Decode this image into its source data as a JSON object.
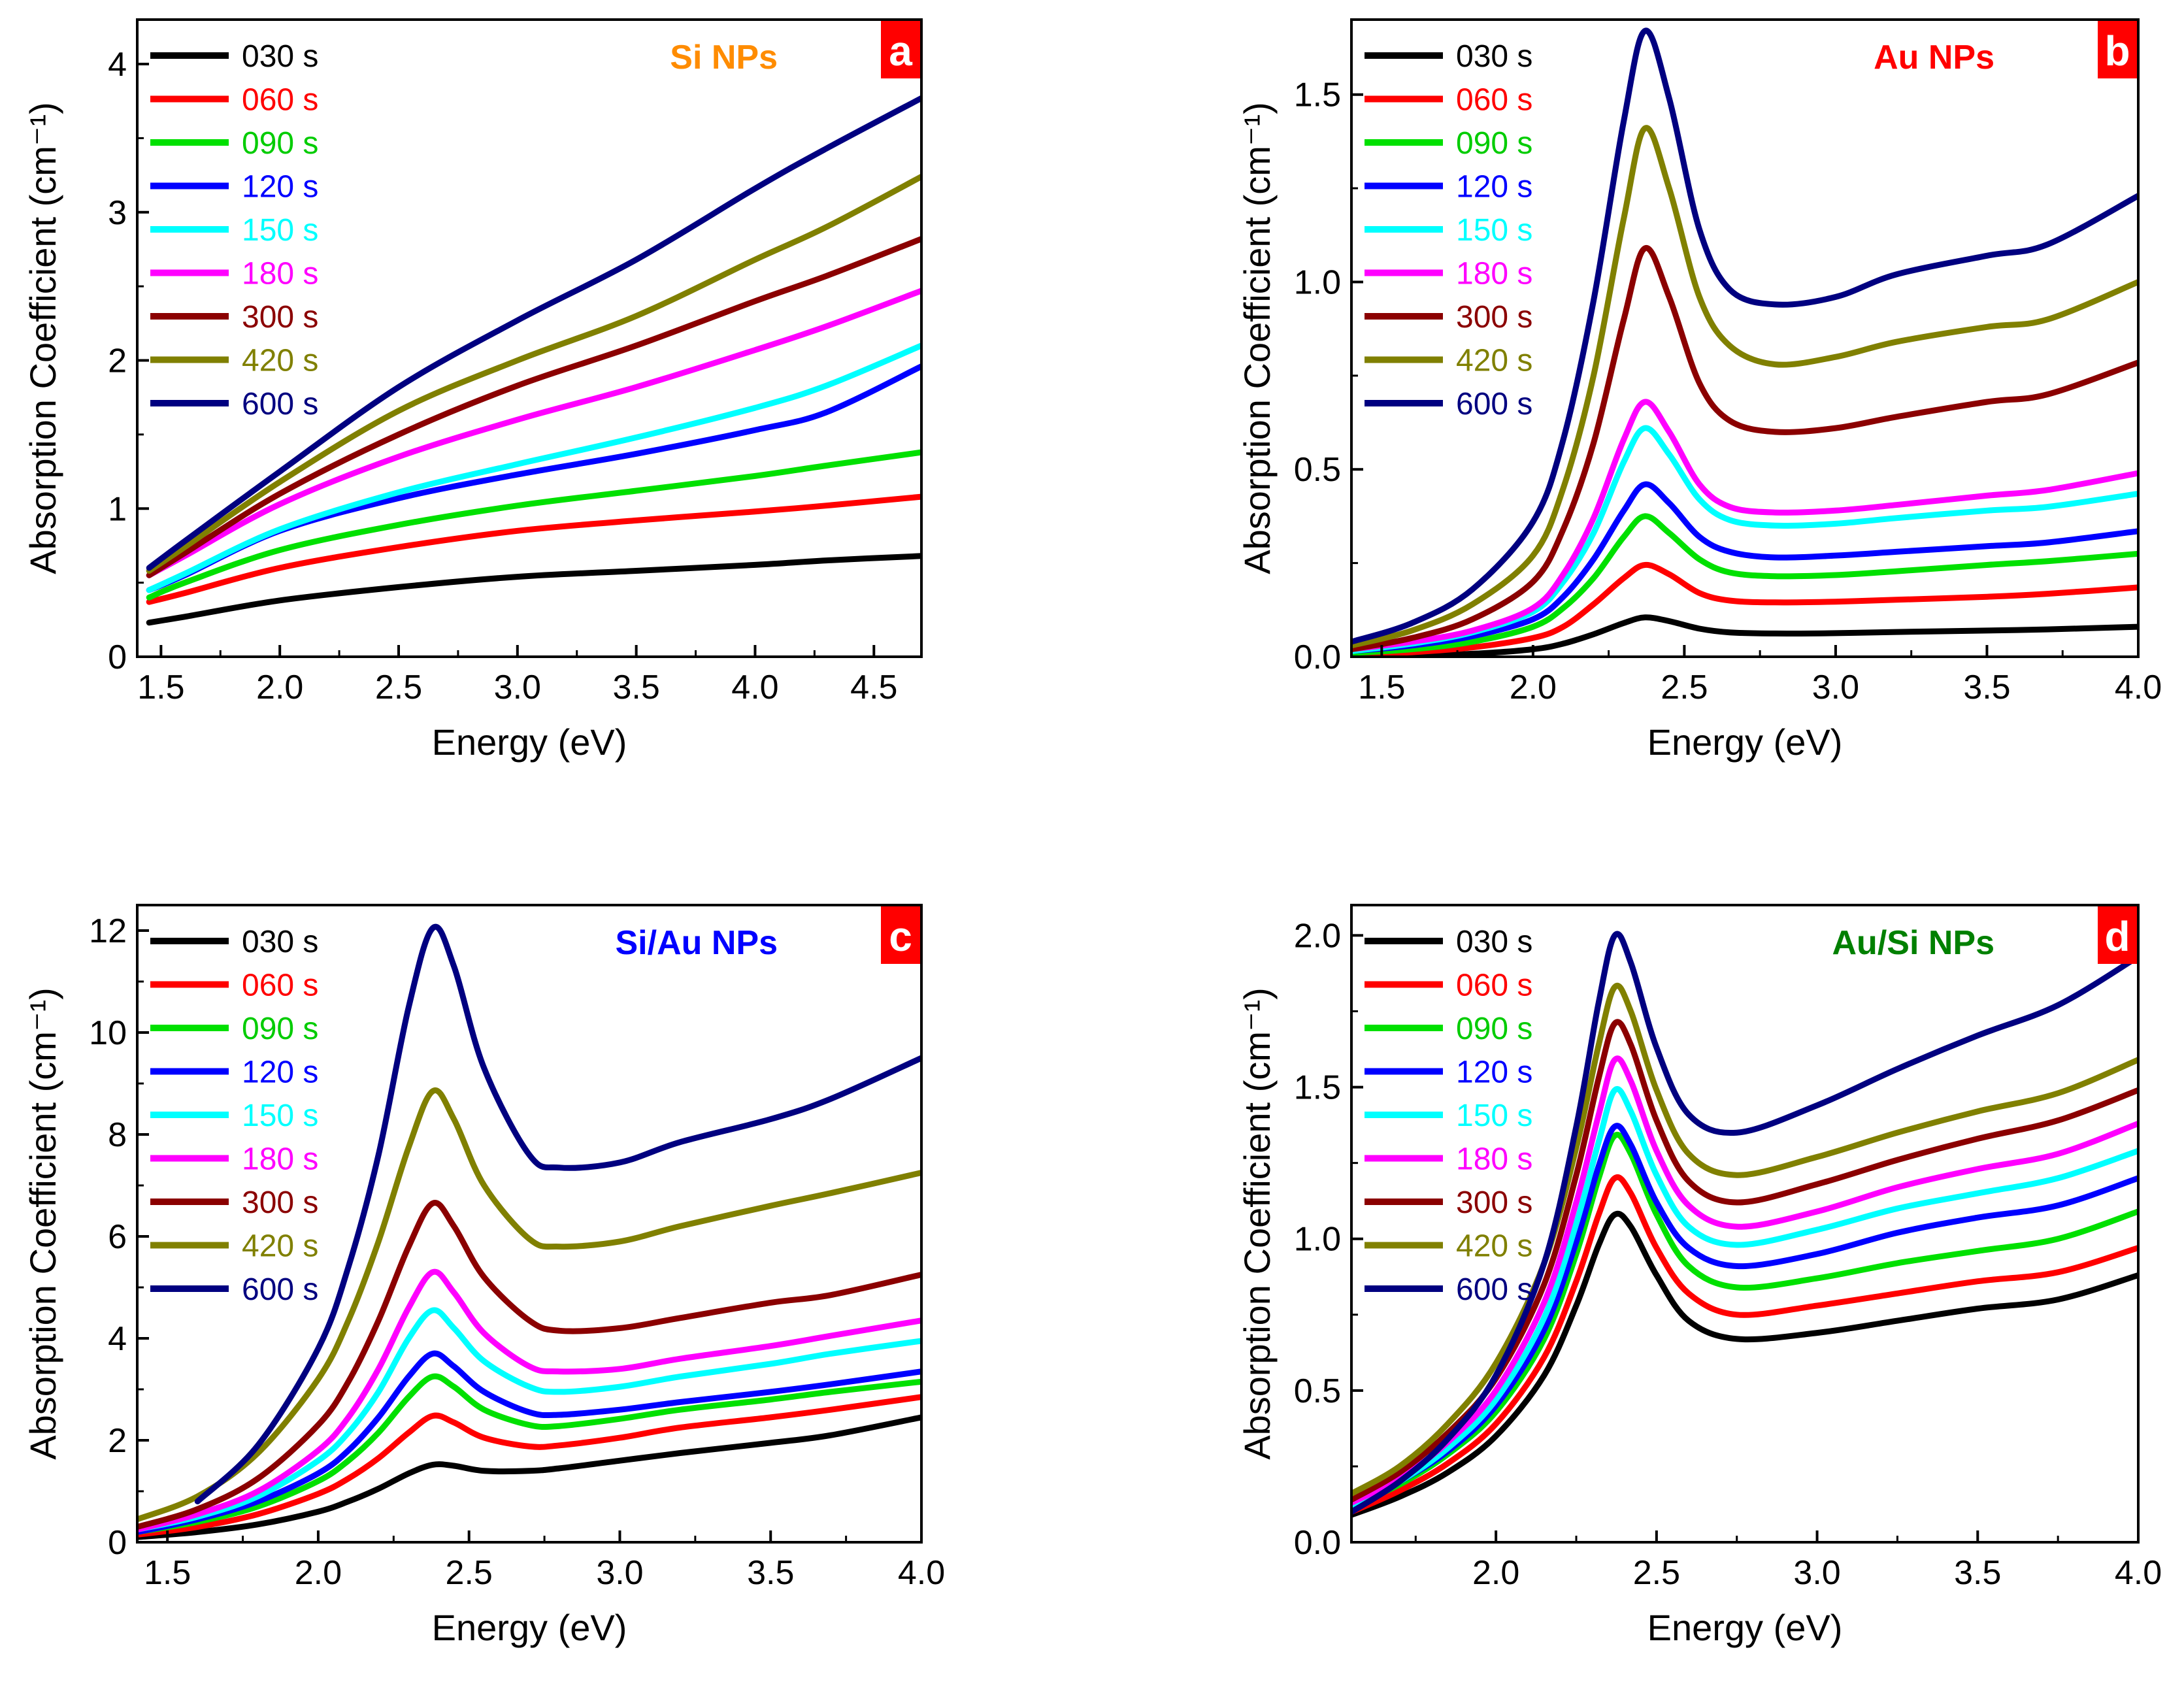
{
  "figure": {
    "legend_labels": [
      "030 s",
      "060 s",
      "090 s",
      "120 s",
      "150 s",
      "180 s",
      "300 s",
      "420 s",
      "600 s"
    ],
    "series_colors": [
      "#000000",
      "#ff0000",
      "#00e000",
      "#0000ff",
      "#00ffff",
      "#ff00ff",
      "#8b0000",
      "#808000",
      "#000080"
    ],
    "letter_box_color": "#ff0000"
  },
  "chart_data": [
    {
      "type": "line",
      "panel_letter": "a",
      "title": "Si NPs",
      "title_color": "#ff8c00",
      "xlabel": "Energy (eV)",
      "ylabel": "Absorption Coefficient (cm⁻¹)",
      "xlim": [
        1.4,
        4.7
      ],
      "ylim": [
        0,
        4.3
      ],
      "xticks": [
        1.5,
        2.0,
        2.5,
        3.0,
        3.5,
        4.0,
        4.5
      ],
      "xtick_labels": [
        "1.5",
        "2.0",
        "2.5",
        "3.0",
        "3.5",
        "4.0",
        "4.5"
      ],
      "yticks": [
        0,
        1,
        2,
        3,
        4
      ],
      "ytick_labels": [
        "0",
        "1",
        "2",
        "3",
        "4"
      ],
      "x": [
        1.45,
        1.6,
        2.0,
        2.5,
        3.0,
        3.5,
        4.0,
        4.3,
        4.7
      ],
      "series": [
        {
          "name": "030 s",
          "values": [
            0.23,
            0.27,
            0.38,
            0.47,
            0.54,
            0.58,
            0.62,
            0.65,
            0.68
          ]
        },
        {
          "name": "060 s",
          "values": [
            0.37,
            0.43,
            0.6,
            0.74,
            0.85,
            0.92,
            0.98,
            1.02,
            1.08
          ]
        },
        {
          "name": "090 s",
          "values": [
            0.4,
            0.5,
            0.72,
            0.89,
            1.02,
            1.12,
            1.22,
            1.29,
            1.38
          ]
        },
        {
          "name": "120 s",
          "values": [
            0.45,
            0.55,
            0.85,
            1.07,
            1.23,
            1.37,
            1.53,
            1.65,
            1.96
          ]
        },
        {
          "name": "150 s",
          "values": [
            0.45,
            0.56,
            0.86,
            1.11,
            1.3,
            1.48,
            1.68,
            1.83,
            2.1
          ]
        },
        {
          "name": "180 s",
          "values": [
            0.55,
            0.68,
            1.03,
            1.35,
            1.6,
            1.82,
            2.07,
            2.23,
            2.47
          ]
        },
        {
          "name": "300 s",
          "values": [
            0.55,
            0.7,
            1.1,
            1.5,
            1.83,
            2.1,
            2.4,
            2.57,
            2.82
          ]
        },
        {
          "name": "420 s",
          "values": [
            0.58,
            0.74,
            1.18,
            1.66,
            2.0,
            2.3,
            2.68,
            2.9,
            3.24
          ]
        },
        {
          "name": "600 s",
          "values": [
            0.6,
            0.78,
            1.25,
            1.82,
            2.27,
            2.68,
            3.16,
            3.43,
            3.77
          ]
        }
      ]
    },
    {
      "type": "line",
      "panel_letter": "b",
      "title": "Au NPs",
      "title_color": "#ff0000",
      "xlabel": "Energy (eV)",
      "ylabel": "Absorption Coefficient (cm⁻¹)",
      "xlim": [
        1.4,
        4.0
      ],
      "ylim": [
        0,
        1.7
      ],
      "xticks": [
        1.5,
        2.0,
        2.5,
        3.0,
        3.5,
        4.0
      ],
      "xtick_labels": [
        "1.5",
        "2.0",
        "2.5",
        "3.0",
        "3.5",
        "4.0"
      ],
      "yticks": [
        0.0,
        0.5,
        1.0,
        1.5
      ],
      "ytick_labels": [
        "0.0",
        "0.5",
        "1.0",
        "1.5"
      ],
      "x": [
        1.4,
        1.6,
        1.8,
        2.0,
        2.1,
        2.2,
        2.3,
        2.37,
        2.45,
        2.55,
        2.65,
        2.8,
        3.0,
        3.2,
        3.5,
        3.7,
        4.0
      ],
      "series": [
        {
          "name": "030 s",
          "values": [
            0.0,
            0.004,
            0.008,
            0.02,
            0.035,
            0.06,
            0.09,
            0.105,
            0.095,
            0.075,
            0.065,
            0.062,
            0.063,
            0.066,
            0.07,
            0.073,
            0.08
          ]
        },
        {
          "name": "060 s",
          "values": [
            0.005,
            0.012,
            0.025,
            0.05,
            0.08,
            0.14,
            0.21,
            0.245,
            0.22,
            0.17,
            0.15,
            0.145,
            0.147,
            0.152,
            0.16,
            0.168,
            0.185
          ]
        },
        {
          "name": "090 s",
          "values": [
            0.01,
            0.02,
            0.04,
            0.08,
            0.13,
            0.21,
            0.32,
            0.375,
            0.33,
            0.26,
            0.225,
            0.215,
            0.218,
            0.228,
            0.245,
            0.255,
            0.275
          ]
        },
        {
          "name": "120 s",
          "values": [
            0.015,
            0.03,
            0.055,
            0.1,
            0.16,
            0.26,
            0.39,
            0.46,
            0.41,
            0.32,
            0.28,
            0.265,
            0.27,
            0.28,
            0.295,
            0.305,
            0.335
          ]
        },
        {
          "name": "150 s",
          "values": [
            0.015,
            0.035,
            0.065,
            0.12,
            0.2,
            0.33,
            0.52,
            0.61,
            0.54,
            0.42,
            0.365,
            0.35,
            0.355,
            0.37,
            0.39,
            0.4,
            0.435
          ]
        },
        {
          "name": "180 s",
          "values": [
            0.02,
            0.04,
            0.07,
            0.13,
            0.22,
            0.37,
            0.58,
            0.68,
            0.6,
            0.46,
            0.4,
            0.385,
            0.39,
            0.405,
            0.43,
            0.445,
            0.49
          ]
        },
        {
          "name": "300 s",
          "values": [
            0.02,
            0.05,
            0.1,
            0.2,
            0.34,
            0.57,
            0.9,
            1.09,
            0.96,
            0.73,
            0.63,
            0.6,
            0.61,
            0.64,
            0.68,
            0.7,
            0.785
          ]
        },
        {
          "name": "420 s",
          "values": [
            0.03,
            0.07,
            0.14,
            0.27,
            0.45,
            0.75,
            1.17,
            1.41,
            1.25,
            0.96,
            0.83,
            0.78,
            0.8,
            0.84,
            0.88,
            0.9,
            1.0
          ]
        },
        {
          "name": "600 s",
          "values": [
            0.04,
            0.09,
            0.18,
            0.36,
            0.58,
            0.95,
            1.43,
            1.67,
            1.49,
            1.14,
            0.98,
            0.94,
            0.96,
            1.02,
            1.07,
            1.1,
            1.23
          ]
        }
      ]
    },
    {
      "type": "line",
      "panel_letter": "c",
      "title": "Si/Au NPs",
      "title_color": "#0000ff",
      "xlabel": "Energy (eV)",
      "ylabel": "Absorption Coefficient (cm⁻¹)",
      "xlim": [
        1.4,
        4.0
      ],
      "ylim": [
        0,
        12.5
      ],
      "xticks": [
        1.5,
        2.0,
        2.5,
        3.0,
        3.5,
        4.0
      ],
      "xtick_labels": [
        "1.5",
        "2.0",
        "2.5",
        "3.0",
        "3.5",
        "4.0"
      ],
      "yticks": [
        0,
        2,
        4,
        6,
        8,
        10,
        12
      ],
      "ytick_labels": [
        "0",
        "2",
        "4",
        "6",
        "8",
        "10",
        "12"
      ],
      "x": [
        1.4,
        1.6,
        1.8,
        2.0,
        2.1,
        2.2,
        2.3,
        2.38,
        2.45,
        2.55,
        2.7,
        2.8,
        3.0,
        3.2,
        3.5,
        3.7,
        4.0
      ],
      "series": [
        {
          "name": "030 s",
          "values": [
            0.1,
            0.2,
            0.35,
            0.6,
            0.8,
            1.05,
            1.35,
            1.52,
            1.5,
            1.4,
            1.4,
            1.45,
            1.6,
            1.75,
            1.95,
            2.1,
            2.45
          ]
        },
        {
          "name": "060 s",
          "values": [
            0.15,
            0.3,
            0.55,
            0.95,
            1.25,
            1.65,
            2.15,
            2.48,
            2.35,
            2.05,
            1.88,
            1.9,
            2.05,
            2.25,
            2.45,
            2.6,
            2.85
          ]
        },
        {
          "name": "090 s",
          "values": [
            0.2,
            0.4,
            0.7,
            1.2,
            1.6,
            2.15,
            2.85,
            3.25,
            3.05,
            2.6,
            2.3,
            2.28,
            2.42,
            2.6,
            2.8,
            2.95,
            3.15
          ]
        },
        {
          "name": "120 s",
          "values": [
            0.2,
            0.45,
            0.8,
            1.35,
            1.8,
            2.45,
            3.25,
            3.7,
            3.45,
            2.95,
            2.55,
            2.5,
            2.6,
            2.75,
            2.95,
            3.1,
            3.35
          ]
        },
        {
          "name": "150 s",
          "values": [
            0.25,
            0.5,
            0.9,
            1.6,
            2.15,
            2.95,
            4.0,
            4.55,
            4.2,
            3.55,
            3.05,
            2.95,
            3.05,
            3.25,
            3.5,
            3.7,
            3.95
          ]
        },
        {
          "name": "180 s",
          "values": [
            0.25,
            0.55,
            1.0,
            1.8,
            2.45,
            3.4,
            4.6,
            5.3,
            4.9,
            4.1,
            3.45,
            3.35,
            3.4,
            3.6,
            3.85,
            4.05,
            4.35
          ]
        },
        {
          "name": "300 s",
          "values": [
            0.3,
            0.65,
            1.25,
            2.3,
            3.15,
            4.35,
            5.8,
            6.65,
            6.2,
            5.2,
            4.35,
            4.15,
            4.2,
            4.4,
            4.7,
            4.85,
            5.25
          ]
        },
        {
          "name": "420 s",
          "values": [
            0.45,
            0.9,
            1.75,
            3.2,
            4.35,
            5.9,
            7.75,
            8.85,
            8.3,
            7.0,
            5.95,
            5.8,
            5.9,
            6.2,
            6.6,
            6.85,
            7.25
          ]
        },
        {
          "name": "600 s",
          "values": [
            null,
            0.8,
            1.9,
            3.8,
            5.4,
            7.6,
            10.5,
            12.05,
            11.3,
            9.3,
            7.6,
            7.35,
            7.45,
            7.85,
            8.3,
            8.7,
            9.5
          ]
        }
      ]
    },
    {
      "type": "line",
      "panel_letter": "d",
      "title": "Au/Si NPs",
      "title_color": "#008000",
      "xlabel": "Energy (eV)",
      "ylabel": "Absorption Coefficient (cm⁻¹)",
      "xlim": [
        1.55,
        4.0
      ],
      "ylim": [
        0,
        2.1
      ],
      "xticks": [
        2.0,
        2.5,
        3.0,
        3.5,
        4.0
      ],
      "xtick_labels": [
        "2.0",
        "2.5",
        "3.0",
        "3.5",
        "4.0"
      ],
      "yticks": [
        0.0,
        0.5,
        1.0,
        1.5,
        2.0
      ],
      "ytick_labels": [
        "0.0",
        "0.5",
        "1.0",
        "1.5",
        "2.0"
      ],
      "x": [
        1.55,
        1.7,
        1.85,
        2.0,
        2.15,
        2.25,
        2.32,
        2.37,
        2.42,
        2.5,
        2.6,
        2.75,
        3.0,
        3.25,
        3.5,
        3.75,
        4.0
      ],
      "series": [
        {
          "name": "030 s",
          "values": [
            0.09,
            0.15,
            0.23,
            0.35,
            0.55,
            0.78,
            0.98,
            1.08,
            1.04,
            0.88,
            0.73,
            0.67,
            0.69,
            0.73,
            0.77,
            0.8,
            0.88
          ]
        },
        {
          "name": "060 s",
          "values": [
            0.1,
            0.17,
            0.26,
            0.39,
            0.61,
            0.86,
            1.08,
            1.2,
            1.15,
            0.97,
            0.82,
            0.75,
            0.78,
            0.82,
            0.86,
            0.89,
            0.97
          ]
        },
        {
          "name": "090 s",
          "values": [
            0.12,
            0.19,
            0.29,
            0.43,
            0.67,
            0.95,
            1.2,
            1.34,
            1.28,
            1.08,
            0.91,
            0.84,
            0.87,
            0.92,
            0.96,
            1.0,
            1.09
          ]
        },
        {
          "name": "120 s",
          "values": [
            0.12,
            0.2,
            0.3,
            0.45,
            0.7,
            0.99,
            1.24,
            1.37,
            1.31,
            1.12,
            0.97,
            0.91,
            0.95,
            1.02,
            1.07,
            1.11,
            1.2
          ]
        },
        {
          "name": "150 s",
          "values": [
            0.12,
            0.2,
            0.31,
            0.47,
            0.74,
            1.05,
            1.32,
            1.49,
            1.42,
            1.21,
            1.04,
            0.98,
            1.03,
            1.1,
            1.15,
            1.2,
            1.29
          ]
        },
        {
          "name": "180 s",
          "values": [
            0.13,
            0.21,
            0.33,
            0.5,
            0.79,
            1.12,
            1.41,
            1.59,
            1.52,
            1.29,
            1.11,
            1.04,
            1.09,
            1.17,
            1.23,
            1.28,
            1.38
          ]
        },
        {
          "name": "300 s",
          "values": [
            0.14,
            0.23,
            0.36,
            0.54,
            0.85,
            1.21,
            1.53,
            1.71,
            1.64,
            1.39,
            1.19,
            1.12,
            1.18,
            1.26,
            1.33,
            1.39,
            1.49
          ]
        },
        {
          "name": "420 s",
          "values": [
            0.16,
            0.25,
            0.39,
            0.59,
            0.92,
            1.3,
            1.64,
            1.83,
            1.75,
            1.49,
            1.28,
            1.21,
            1.27,
            1.35,
            1.42,
            1.48,
            1.59
          ]
        },
        {
          "name": "600 s",
          "values": [
            0.1,
            0.2,
            0.34,
            0.55,
            0.92,
            1.37,
            1.78,
            2.0,
            1.91,
            1.63,
            1.41,
            1.35,
            1.44,
            1.56,
            1.67,
            1.77,
            1.93
          ]
        }
      ]
    }
  ]
}
